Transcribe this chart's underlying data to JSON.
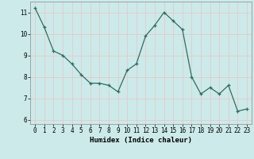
{
  "x": [
    0,
    1,
    2,
    3,
    4,
    5,
    6,
    7,
    8,
    9,
    10,
    11,
    12,
    13,
    14,
    15,
    16,
    17,
    18,
    19,
    20,
    21,
    22,
    23
  ],
  "y": [
    11.2,
    10.3,
    9.2,
    9.0,
    8.6,
    8.1,
    7.7,
    7.7,
    7.6,
    7.3,
    8.3,
    8.6,
    9.9,
    10.4,
    11.0,
    10.6,
    10.2,
    8.0,
    7.2,
    7.5,
    7.2,
    7.6,
    6.4,
    6.5
  ],
  "xlabel": "Humidex (Indice chaleur)",
  "xlim": [
    -0.5,
    23.5
  ],
  "ylim": [
    5.8,
    11.5
  ],
  "yticks": [
    6,
    7,
    8,
    9,
    10,
    11
  ],
  "xticks": [
    0,
    1,
    2,
    3,
    4,
    5,
    6,
    7,
    8,
    9,
    10,
    11,
    12,
    13,
    14,
    15,
    16,
    17,
    18,
    19,
    20,
    21,
    22,
    23
  ],
  "line_color": "#2d6e5e",
  "marker": "+",
  "bg_color": "#cceaea",
  "grid_color": "#e8c8c8",
  "label_fontsize": 6.5,
  "tick_fontsize": 5.5
}
